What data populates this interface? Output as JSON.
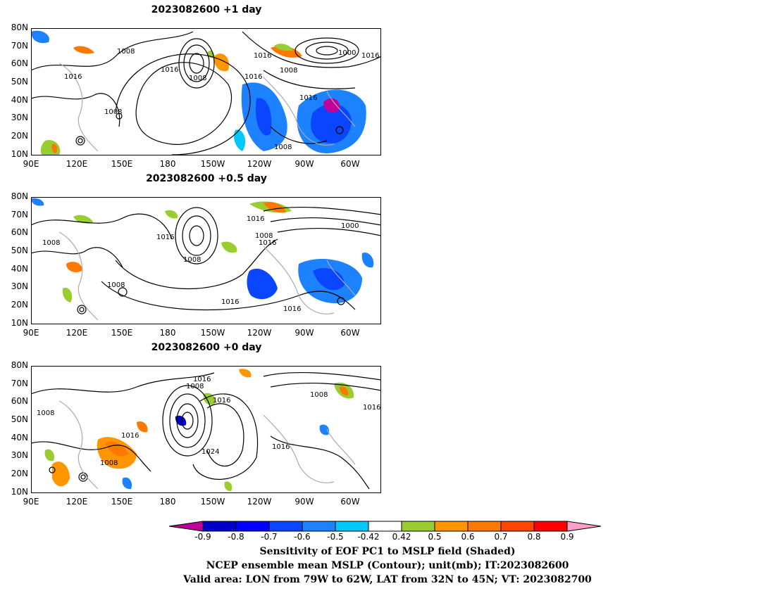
{
  "panels": [
    {
      "title": "2023082600  +1 day",
      "contour_labels": [
        "1008",
        "1016",
        "1016",
        "1008",
        "1016",
        "1008",
        "1016",
        "1000",
        "1016",
        "1008",
        "1016",
        "1008",
        "1008"
      ]
    },
    {
      "title": "2023082600  +0.5 day",
      "contour_labels": [
        "1016",
        "1008",
        "1016",
        "1008",
        "1016",
        "1000",
        "1008",
        "1008",
        "1016",
        "1016"
      ]
    },
    {
      "title": "2023082600  +0 day",
      "contour_labels": [
        "1016",
        "1008",
        "1016",
        "1008",
        "1016",
        "1008",
        "1016",
        "1016",
        "1008",
        "1024"
      ]
    }
  ],
  "lat_labels": [
    "80N",
    "70N",
    "60N",
    "50N",
    "40N",
    "30N",
    "20N",
    "10N"
  ],
  "lon_labels": [
    "90E",
    "120E",
    "150E",
    "180",
    "150W",
    "120W",
    "90W",
    "60W"
  ],
  "colorbar": {
    "ticks": [
      "-0.9",
      "-0.8",
      "-0.7",
      "-0.6",
      "-0.5",
      "-0.42",
      "0.42",
      "0.5",
      "0.6",
      "0.7",
      "0.8",
      "0.9"
    ],
    "colors": [
      "#c0009a",
      "#0000c8",
      "#0000ff",
      "#0a46ff",
      "#1c82ff",
      "#00c8ff",
      "#ffffff",
      "#9acd32",
      "#ff9600",
      "#ff7800",
      "#ff4600",
      "#ff0000",
      "#ffa0c8"
    ]
  },
  "caption": [
    "Sensitivity of EOF PC1 to MSLP field (Shaded)",
    "NCEP ensemble mean MSLP (Contour); unit(mb); IT:2023082600",
    "Valid area: LON from 79W to 62W, LAT from 32N to 45N; VT: 2023082700"
  ]
}
